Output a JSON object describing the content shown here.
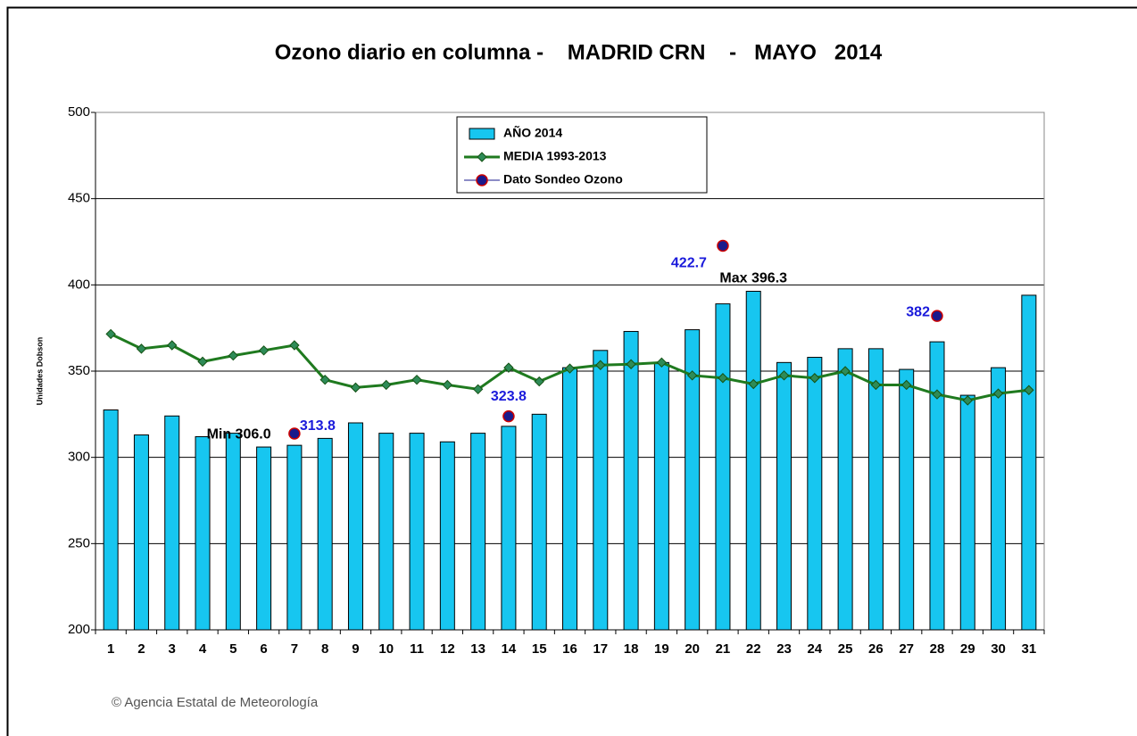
{
  "chart_data": {
    "type": "bar",
    "title": "Ozono diario en columna -    MADRID CRN    -   MAYO   2014",
    "y_label": "Unidades Dobson",
    "source": "© Agencia Estatal de Meteorología",
    "categories": [
      "1",
      "2",
      "3",
      "4",
      "5",
      "6",
      "7",
      "8",
      "9",
      "10",
      "11",
      "12",
      "13",
      "14",
      "15",
      "16",
      "17",
      "18",
      "19",
      "20",
      "21",
      "22",
      "23",
      "24",
      "25",
      "26",
      "27",
      "28",
      "29",
      "30",
      "31"
    ],
    "series": [
      {
        "name": "AÑO 2014",
        "type": "bar",
        "color": "#17c6f0",
        "values": [
          327.5,
          313,
          324,
          312,
          314,
          306.0,
          307,
          311,
          320,
          314,
          314,
          309,
          314,
          318,
          325,
          352,
          362,
          373,
          355,
          374,
          389,
          396.3,
          355,
          358,
          363,
          363,
          351,
          367,
          336,
          352,
          394
        ]
      },
      {
        "name": "MEDIA 1993-2013",
        "type": "line",
        "color": "#1f7a1f",
        "values": [
          371.5,
          363,
          365,
          355.5,
          359,
          362,
          365,
          345,
          340.5,
          342,
          345,
          342,
          339.5,
          352,
          344,
          351.5,
          353.5,
          354,
          355,
          347.5,
          346,
          342.5,
          347.5,
          346,
          350,
          342,
          342,
          336.5,
          333,
          337,
          339
        ]
      },
      {
        "name": "Dato Sondeo Ozono",
        "type": "scatter",
        "color": "#1a1a8c",
        "values": [
          null,
          null,
          null,
          null,
          null,
          null,
          313.8,
          null,
          null,
          null,
          null,
          null,
          null,
          323.8,
          null,
          null,
          null,
          null,
          null,
          null,
          422.7,
          null,
          null,
          null,
          null,
          null,
          null,
          382,
          null,
          null,
          null
        ]
      }
    ],
    "annotations": [
      "Min 306.0",
      "Max 396.3"
    ],
    "ylim": [
      200,
      500
    ],
    "yticks": [
      200,
      250,
      300,
      350,
      400,
      450,
      500
    ],
    "grid": true,
    "legend": "top"
  }
}
